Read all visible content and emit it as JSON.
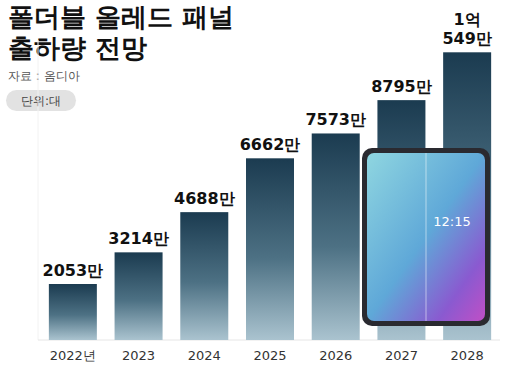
{
  "chart_data": {
    "type": "bar",
    "title": "폴더블 올레드 패널\n출하량 전망",
    "subtitle": "자료 : 옴디아",
    "unit": "단위:대",
    "categories": [
      "2022년",
      "2023",
      "2024",
      "2025",
      "2026",
      "2027",
      "2028"
    ],
    "values": [
      2053,
      3214,
      4688,
      6662,
      7573,
      8795,
      10549
    ],
    "value_labels": [
      "2053만",
      "3214만",
      "4688만",
      "6662만",
      "7573만",
      "8795만",
      "1억\n549만"
    ],
    "ylim": [
      0,
      11000
    ],
    "data_labels": true,
    "tick_labels": "x",
    "grid": false,
    "color": "#1b3b50",
    "annotations": [
      "12:15"
    ]
  }
}
